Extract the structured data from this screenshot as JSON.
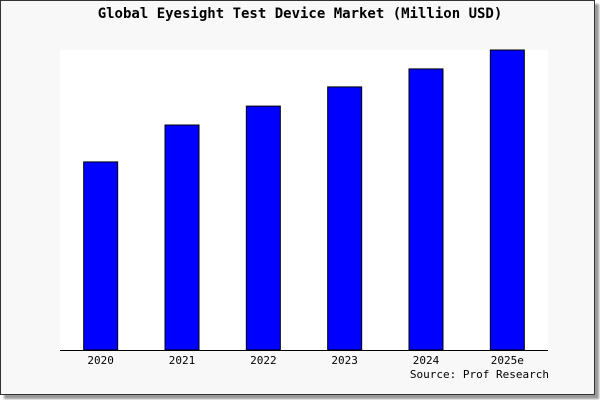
{
  "chart_data": {
    "type": "bar",
    "title": "Global Eyesight Test Device Market (Million USD)",
    "categories": [
      "2020",
      "2021",
      "2022",
      "2023",
      "2024",
      "2025e"
    ],
    "values": [
      62.7,
      75.0,
      81.3,
      87.7,
      93.7,
      100.0
    ],
    "xlabel": "",
    "ylabel": "",
    "ylim": [
      0,
      100
    ],
    "grid": false,
    "source": "Source: Prof Research",
    "colors": {
      "bar": "#0000ff",
      "bar_edge": "#000000",
      "plot_bg": "#ffffff",
      "frame_bg": "#f8f8f8"
    }
  }
}
